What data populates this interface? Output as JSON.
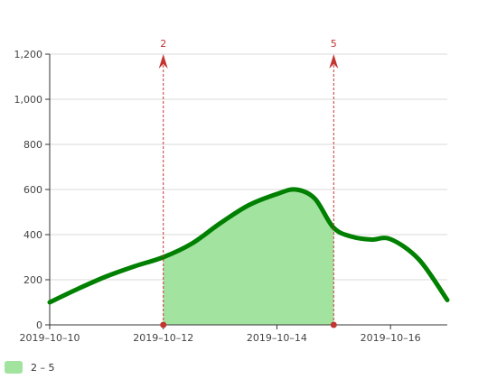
{
  "chart_data": {
    "type": "line",
    "title": "",
    "xlabel": "",
    "ylabel": "",
    "ylim": [
      0,
      1200
    ],
    "yticks": [
      "0",
      "200",
      "400",
      "600",
      "800",
      "1,000",
      "1,200"
    ],
    "xticks": [
      "2019–10–10",
      "2019–10–12",
      "2019–10–14",
      "2019–10–16"
    ],
    "x_axis": {
      "start": "2019-10-10",
      "end": "2019-10-17"
    },
    "grid": true,
    "series": [
      {
        "x": [
          "2019-10-10",
          "2019-10-10 12:00",
          "2019-10-11",
          "2019-10-11 12:00",
          "2019-10-12",
          "2019-10-12 12:00",
          "2019-10-13",
          "2019-10-13 12:00",
          "2019-10-14",
          "2019-10-14 08:00",
          "2019-10-14 16:00",
          "2019-10-15",
          "2019-10-15 08:00",
          "2019-10-15 16:00",
          "2019-10-16",
          "2019-10-16 12:00",
          "2019-10-17"
        ],
        "values": [
          100,
          160,
          215,
          260,
          300,
          360,
          450,
          530,
          580,
          600,
          560,
          430,
          390,
          378,
          380,
          290,
          110
        ],
        "color": "#008000"
      }
    ],
    "marked_area": {
      "from": "2019-10-12",
      "to": "2019-10-15",
      "fill": "#a2e3a0",
      "legend": "2 – 5"
    },
    "mark_lines": [
      {
        "x": "2019-10-12",
        "label": "2",
        "color": "#c23531"
      },
      {
        "x": "2019-10-15",
        "label": "5",
        "color": "#c23531"
      }
    ],
    "legend_position": "bottom-left"
  }
}
